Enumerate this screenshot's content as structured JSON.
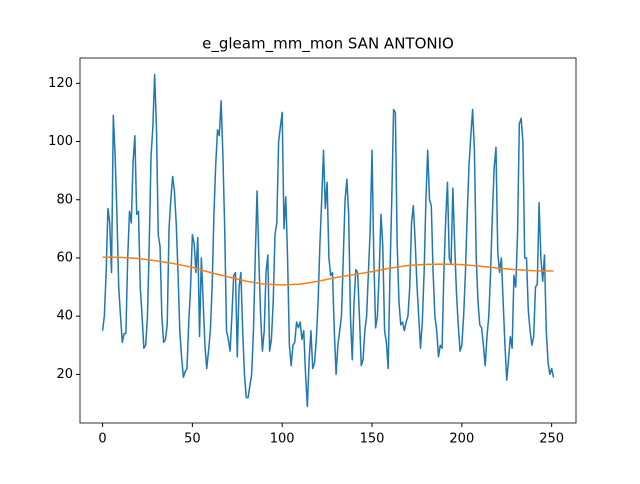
{
  "chart_data": {
    "type": "line",
    "title": "e_gleam_mm_mon SAN ANTONIO",
    "xlim": [
      -12.55,
      263.55
    ],
    "xticks": [
      0,
      50,
      100,
      150,
      200,
      250
    ],
    "ylim": [
      3.3,
      128.7
    ],
    "yticks": [
      20,
      40,
      60,
      80,
      100,
      120
    ],
    "series": [
      {
        "color": "#1f77b4",
        "x": [
          0,
          1,
          2,
          3,
          4,
          5,
          6,
          7,
          8,
          9,
          10,
          11,
          12,
          13,
          14,
          15,
          16,
          17,
          18,
          19,
          20,
          21,
          22,
          23,
          24,
          25,
          26,
          27,
          28,
          29,
          30,
          31,
          32,
          33,
          34,
          35,
          36,
          37,
          38,
          39,
          40,
          41,
          42,
          43,
          44,
          45,
          46,
          47,
          48,
          49,
          50,
          51,
          52,
          53,
          54,
          55,
          56,
          57,
          58,
          59,
          60,
          61,
          62,
          63,
          64,
          65,
          66,
          67,
          68,
          69,
          70,
          71,
          72,
          73,
          74,
          75,
          76,
          77,
          78,
          79,
          80,
          81,
          82,
          83,
          84,
          85,
          86,
          87,
          88,
          89,
          90,
          91,
          92,
          93,
          94,
          95,
          96,
          97,
          98,
          99,
          100,
          101,
          102,
          103,
          104,
          105,
          106,
          107,
          108,
          109,
          110,
          111,
          112,
          113,
          114,
          115,
          116,
          117,
          118,
          119,
          120,
          121,
          122,
          123,
          124,
          125,
          126,
          127,
          128,
          129,
          130,
          131,
          132,
          133,
          134,
          135,
          136,
          137,
          138,
          139,
          140,
          141,
          142,
          143,
          144,
          145,
          146,
          147,
          148,
          149,
          150,
          151,
          152,
          153,
          154,
          155,
          156,
          157,
          158,
          159,
          160,
          161,
          162,
          163,
          164,
          165,
          166,
          167,
          168,
          169,
          170,
          171,
          172,
          173,
          174,
          175,
          176,
          177,
          178,
          179,
          180,
          181,
          182,
          183,
          184,
          185,
          186,
          187,
          188,
          189,
          190,
          191,
          192,
          193,
          194,
          195,
          196,
          197,
          198,
          199,
          200,
          201,
          202,
          203,
          204,
          205,
          206,
          207,
          208,
          209,
          210,
          211,
          212,
          213,
          214,
          215,
          216,
          217,
          218,
          219,
          220,
          221,
          222,
          223,
          224,
          225,
          226,
          227,
          228,
          229,
          230,
          231,
          232,
          233,
          234,
          235,
          236,
          237,
          238,
          239,
          240,
          241,
          242,
          243,
          244,
          245,
          246,
          247,
          248,
          249,
          250,
          251
        ],
        "values": [
          35,
          40,
          55,
          77,
          72,
          55,
          109,
          95,
          75,
          50,
          40,
          31,
          34,
          34,
          60,
          76,
          72,
          93,
          102,
          75,
          76,
          50,
          40,
          29,
          30,
          40,
          65,
          95,
          105,
          123,
          105,
          68,
          64,
          40,
          31,
          32,
          37,
          70,
          80,
          88,
          83,
          72,
          55,
          35,
          26,
          19,
          21,
          22,
          38,
          50,
          68,
          65,
          55,
          67,
          33,
          60,
          45,
          30,
          22,
          28,
          35,
          50,
          75,
          92,
          104,
          102,
          114,
          95,
          70,
          35,
          32,
          28,
          40,
          54,
          55,
          26,
          50,
          55,
          35,
          20,
          12,
          12,
          16,
          20,
          35,
          60,
          83,
          60,
          40,
          28,
          35,
          55,
          61,
          28,
          32,
          45,
          68,
          72,
          100,
          105,
          110,
          70,
          81,
          60,
          30,
          23,
          30,
          31,
          38,
          36,
          38,
          32,
          35,
          20,
          9,
          25,
          35,
          22,
          24,
          32,
          45,
          65,
          80,
          97,
          77,
          86,
          60,
          54,
          55,
          35,
          20,
          30,
          35,
          40,
          60,
          80,
          87,
          75,
          40,
          25,
          45,
          56,
          55,
          40,
          23,
          25,
          35,
          40,
          55,
          70,
          97,
          60,
          36,
          40,
          55,
          75,
          64,
          35,
          31,
          22,
          55,
          80,
          111,
          110,
          65,
          45,
          37,
          38,
          35,
          38,
          40,
          50,
          72,
          78,
          66,
          51,
          40,
          29,
          38,
          55,
          80,
          97,
          80,
          78,
          55,
          40,
          35,
          26,
          30,
          29,
          55,
          73,
          86,
          60,
          58,
          84,
          65,
          48,
          37,
          28,
          30,
          40,
          55,
          75,
          92,
          102,
          111,
          97,
          60,
          45,
          37,
          36,
          30,
          23,
          33,
          40,
          55,
          75,
          91,
          98,
          62,
          55,
          60,
          45,
          30,
          18,
          25,
          33,
          29,
          54,
          50,
          68,
          106,
          108,
          100,
          60,
          60,
          42,
          35,
          30,
          33,
          50,
          51,
          79,
          60,
          52,
          61,
          35,
          24,
          20,
          22,
          19
        ]
      },
      {
        "color": "#ff7f0e",
        "x": [
          0,
          10,
          20,
          30,
          40,
          50,
          60,
          70,
          80,
          90,
          100,
          110,
          120,
          130,
          140,
          150,
          160,
          170,
          180,
          190,
          200,
          210,
          220,
          230,
          240,
          251
        ],
        "values": [
          60.3,
          60.2,
          59.8,
          59,
          58,
          56.8,
          55,
          53.5,
          52,
          51,
          50.7,
          51,
          52,
          53.3,
          54.3,
          55.3,
          56.5,
          57.4,
          57.8,
          57.9,
          57.7,
          57.2,
          56.5,
          56,
          55.6,
          55.5
        ]
      }
    ]
  }
}
